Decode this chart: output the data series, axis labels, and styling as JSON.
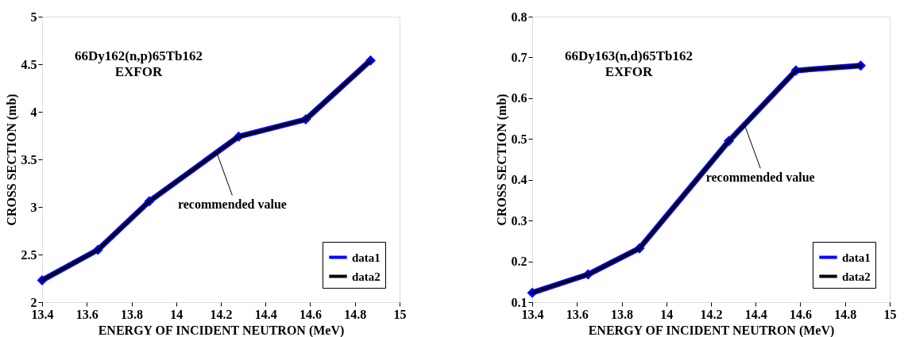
{
  "chart_data": [
    {
      "type": "line",
      "xlabel": "ENERGY OF INCIDENT NEUTRON (MeV)",
      "ylabel": "CROSS SECTION (mb)",
      "x": [
        13.4,
        13.65,
        13.88,
        14.28,
        14.58,
        14.87
      ],
      "series": [
        {
          "name": "data1",
          "color": "#0000ff",
          "marker": "diamond",
          "values": [
            2.23,
            2.55,
            3.06,
            3.74,
            3.92,
            4.54
          ]
        },
        {
          "name": "data2",
          "color": "#000000",
          "marker": "none",
          "values": [
            2.23,
            2.55,
            3.06,
            3.74,
            3.92,
            4.54
          ]
        }
      ],
      "xlim": [
        13.4,
        15
      ],
      "xticks": [
        13.4,
        13.6,
        13.8,
        14,
        14.2,
        14.4,
        14.6,
        14.8,
        15
      ],
      "ylim": [
        2,
        5
      ],
      "yticks": [
        2,
        2.5,
        3,
        3.5,
        4,
        4.5,
        5
      ],
      "annotations": [
        "66Dy162(n,p)65Tb162",
        "EXFOR",
        {
          "text": "recommended value",
          "x": 14.18,
          "y": 3.58
        }
      ],
      "grid": false,
      "legend": "bottom right"
    },
    {
      "type": "line",
      "xlabel": "ENERGY OF INCIDENT NEUTRON (MeV)",
      "ylabel": "CROSS SECTION (mb)",
      "x": [
        13.4,
        13.65,
        13.88,
        14.28,
        14.58,
        14.87
      ],
      "series": [
        {
          "name": "data1",
          "color": "#0000ff",
          "marker": "diamond",
          "values": [
            0.123,
            0.168,
            0.232,
            0.495,
            0.668,
            0.68
          ]
        },
        {
          "name": "data2",
          "color": "#000000",
          "marker": "none",
          "values": [
            0.123,
            0.168,
            0.232,
            0.495,
            0.668,
            0.68
          ]
        }
      ],
      "xlim": [
        13.4,
        15
      ],
      "xticks": [
        13.4,
        13.6,
        13.8,
        14,
        14.2,
        14.4,
        14.6,
        14.8,
        15
      ],
      "ylim": [
        0.1,
        0.8
      ],
      "yticks": [
        0.1,
        0.2,
        0.3,
        0.4,
        0.5,
        0.6,
        0.7,
        0.8
      ],
      "annotations": [
        "66Dy163(n,d)65Tb162",
        "EXFOR",
        {
          "text": "recommended value",
          "x": 14.35,
          "y": 0.535
        }
      ],
      "grid": false,
      "legend": "bottom right"
    }
  ]
}
